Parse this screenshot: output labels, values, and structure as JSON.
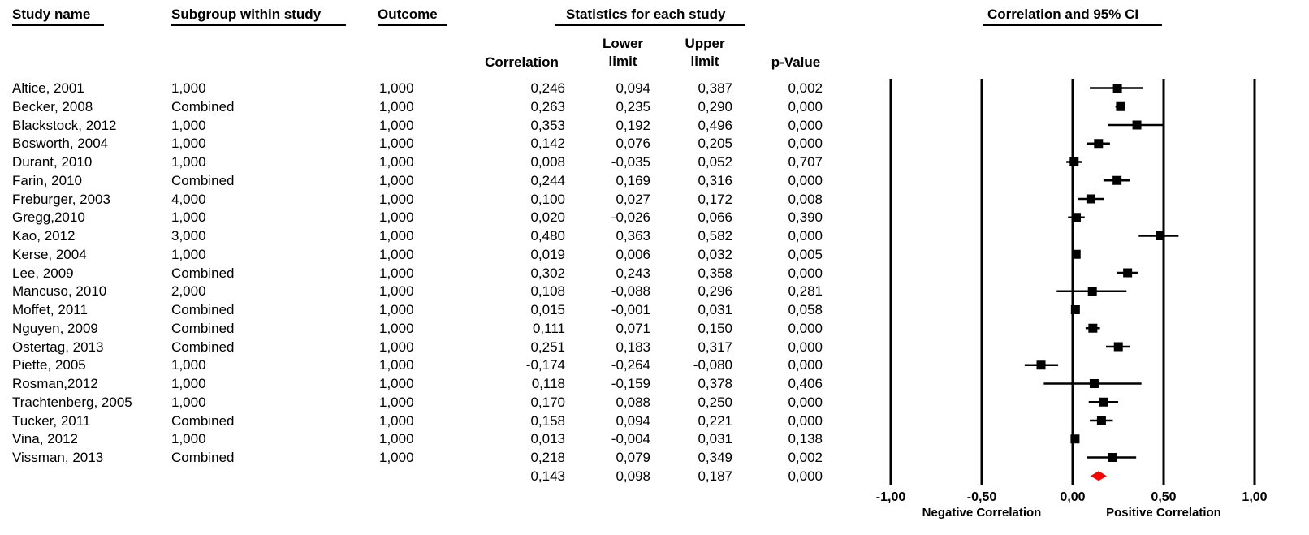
{
  "headers": {
    "study_name": "Study name",
    "subgroup": "Subgroup within study",
    "outcome": "Outcome",
    "statistics": "Statistics for each study",
    "correlation_ci": "Correlation and 95% CI",
    "correlation": "Correlation",
    "lower_1": "Lower",
    "lower_2": "limit",
    "upper_1": "Upper",
    "upper_2": "limit",
    "pvalue": "p-Value"
  },
  "chart_data": {
    "type": "forest",
    "xlim": [
      -1.0,
      1.0
    ],
    "x_ticks": [
      "-1,00",
      "-0,50",
      "0,00",
      "0,50",
      "1,00"
    ],
    "x_tick_values": [
      -1.0,
      -0.5,
      0.0,
      0.5,
      1.0
    ],
    "axis_label_left": "Negative Correlation",
    "axis_label_right": "Positive Correlation",
    "summary_color": "#ff0000",
    "marker_color": "#000000",
    "studies": [
      {
        "study": "Altice, 2001",
        "subgroup": "1,000",
        "outcome": "1,000",
        "correlation": "0,246",
        "lower": "0,094",
        "upper": "0,387",
        "p": "0,002",
        "r": 0.246,
        "lo": 0.094,
        "hi": 0.387
      },
      {
        "study": "Becker, 2008",
        "subgroup": "Combined",
        "outcome": "1,000",
        "correlation": "0,263",
        "lower": "0,235",
        "upper": "0,290",
        "p": "0,000",
        "r": 0.263,
        "lo": 0.235,
        "hi": 0.29
      },
      {
        "study": "Blackstock, 2012",
        "subgroup": "1,000",
        "outcome": "1,000",
        "correlation": "0,353",
        "lower": "0,192",
        "upper": "0,496",
        "p": "0,000",
        "r": 0.353,
        "lo": 0.192,
        "hi": 0.496
      },
      {
        "study": "Bosworth, 2004",
        "subgroup": "1,000",
        "outcome": "1,000",
        "correlation": "0,142",
        "lower": "0,076",
        "upper": "0,205",
        "p": "0,000",
        "r": 0.142,
        "lo": 0.076,
        "hi": 0.205
      },
      {
        "study": "Durant, 2010",
        "subgroup": "1,000",
        "outcome": "1,000",
        "correlation": "0,008",
        "lower": "-0,035",
        "upper": "0,052",
        "p": "0,707",
        "r": 0.008,
        "lo": -0.035,
        "hi": 0.052
      },
      {
        "study": "Farin, 2010",
        "subgroup": "Combined",
        "outcome": "1,000",
        "correlation": "0,244",
        "lower": "0,169",
        "upper": "0,316",
        "p": "0,000",
        "r": 0.244,
        "lo": 0.169,
        "hi": 0.316
      },
      {
        "study": "Freburger, 2003",
        "subgroup": "4,000",
        "outcome": "1,000",
        "correlation": "0,100",
        "lower": "0,027",
        "upper": "0,172",
        "p": "0,008",
        "r": 0.1,
        "lo": 0.027,
        "hi": 0.172
      },
      {
        "study": "Gregg,2010",
        "subgroup": "1,000",
        "outcome": "1,000",
        "correlation": "0,020",
        "lower": "-0,026",
        "upper": "0,066",
        "p": "0,390",
        "r": 0.02,
        "lo": -0.026,
        "hi": 0.066
      },
      {
        "study": "Kao, 2012",
        "subgroup": "3,000",
        "outcome": "1,000",
        "correlation": "0,480",
        "lower": "0,363",
        "upper": "0,582",
        "p": "0,000",
        "r": 0.48,
        "lo": 0.363,
        "hi": 0.582
      },
      {
        "study": "Kerse, 2004",
        "subgroup": "1,000",
        "outcome": "1,000",
        "correlation": "0,019",
        "lower": "0,006",
        "upper": "0,032",
        "p": "0,005",
        "r": 0.019,
        "lo": 0.006,
        "hi": 0.032
      },
      {
        "study": "Lee, 2009",
        "subgroup": "Combined",
        "outcome": "1,000",
        "correlation": "0,302",
        "lower": "0,243",
        "upper": "0,358",
        "p": "0,000",
        "r": 0.302,
        "lo": 0.243,
        "hi": 0.358
      },
      {
        "study": "Mancuso, 2010",
        "subgroup": "2,000",
        "outcome": "1,000",
        "correlation": "0,108",
        "lower": "-0,088",
        "upper": "0,296",
        "p": "0,281",
        "r": 0.108,
        "lo": -0.088,
        "hi": 0.296
      },
      {
        "study": "Moffet, 2011",
        "subgroup": "Combined",
        "outcome": "1,000",
        "correlation": "0,015",
        "lower": "-0,001",
        "upper": "0,031",
        "p": "0,058",
        "r": 0.015,
        "lo": -0.001,
        "hi": 0.031
      },
      {
        "study": "Nguyen, 2009",
        "subgroup": "Combined",
        "outcome": "1,000",
        "correlation": "0,111",
        "lower": "0,071",
        "upper": "0,150",
        "p": "0,000",
        "r": 0.111,
        "lo": 0.071,
        "hi": 0.15
      },
      {
        "study": "Ostertag, 2013",
        "subgroup": "Combined",
        "outcome": "1,000",
        "correlation": "0,251",
        "lower": "0,183",
        "upper": "0,317",
        "p": "0,000",
        "r": 0.251,
        "lo": 0.183,
        "hi": 0.317
      },
      {
        "study": "Piette, 2005",
        "subgroup": "1,000",
        "outcome": "1,000",
        "correlation": "-0,174",
        "lower": "-0,264",
        "upper": "-0,080",
        "p": "0,000",
        "r": -0.174,
        "lo": -0.264,
        "hi": -0.08
      },
      {
        "study": "Rosman,2012",
        "subgroup": "1,000",
        "outcome": "1,000",
        "correlation": "0,118",
        "lower": "-0,159",
        "upper": "0,378",
        "p": "0,406",
        "r": 0.118,
        "lo": -0.159,
        "hi": 0.378
      },
      {
        "study": "Trachtenberg, 2005",
        "subgroup": "1,000",
        "outcome": "1,000",
        "correlation": "0,170",
        "lower": "0,088",
        "upper": "0,250",
        "p": "0,000",
        "r": 0.17,
        "lo": 0.088,
        "hi": 0.25
      },
      {
        "study": "Tucker, 2011",
        "subgroup": "Combined",
        "outcome": "1,000",
        "correlation": "0,158",
        "lower": "0,094",
        "upper": "0,221",
        "p": "0,000",
        "r": 0.158,
        "lo": 0.094,
        "hi": 0.221
      },
      {
        "study": "Vina, 2012",
        "subgroup": "1,000",
        "outcome": "1,000",
        "correlation": "0,013",
        "lower": "-0,004",
        "upper": "0,031",
        "p": "0,138",
        "r": 0.013,
        "lo": -0.004,
        "hi": 0.031
      },
      {
        "study": "Vissman, 2013",
        "subgroup": "Combined",
        "outcome": "1,000",
        "correlation": "0,218",
        "lower": "0,079",
        "upper": "0,349",
        "p": "0,002",
        "r": 0.218,
        "lo": 0.079,
        "hi": 0.349
      }
    ],
    "summary": {
      "correlation": "0,143",
      "lower": "0,098",
      "upper": "0,187",
      "p": "0,000",
      "r": 0.143,
      "lo": 0.098,
      "hi": 0.187
    }
  }
}
